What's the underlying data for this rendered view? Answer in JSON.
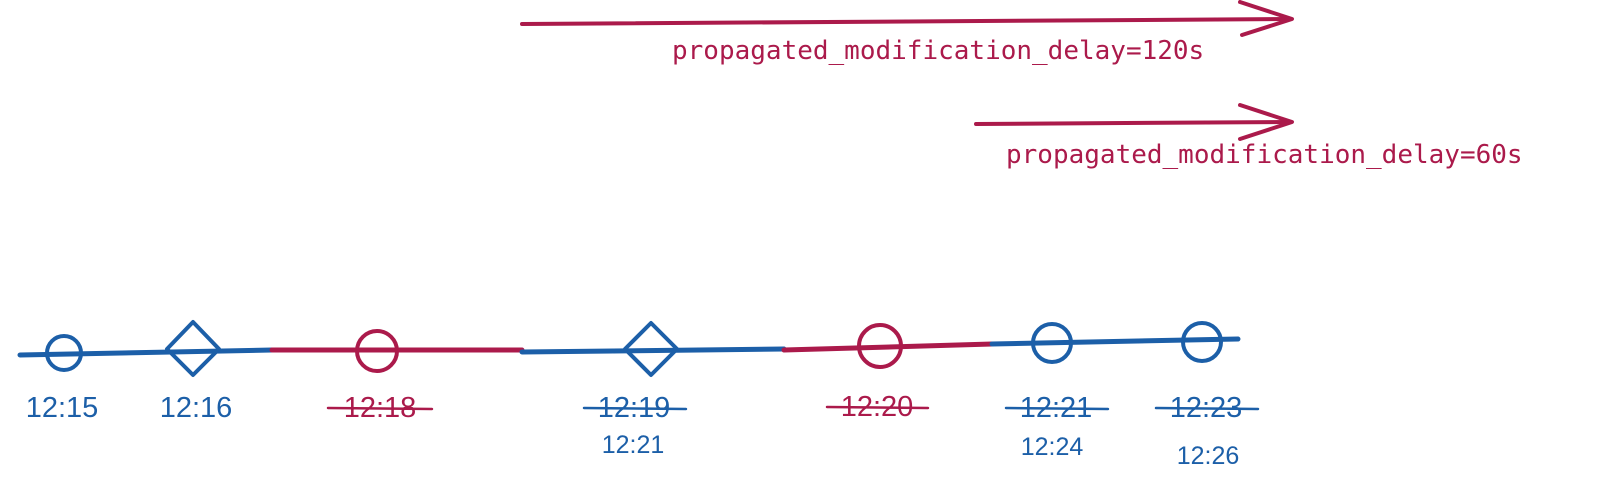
{
  "colors": {
    "blue": "#1c5fa8",
    "crimson": "#ab1a4b",
    "background": "#ffffff"
  },
  "arrows": [
    {
      "label": "propagated_modification_delay=120s",
      "color": "#ab1a4b"
    },
    {
      "label": "propagated_modification_delay=60s",
      "color": "#ab1a4b"
    }
  ],
  "timeline": {
    "segments": [
      {
        "color": "#1c5fa8"
      },
      {
        "color": "#ab1a4b"
      },
      {
        "color": "#1c5fa8"
      },
      {
        "color": "#ab1a4b"
      },
      {
        "color": "#1c5fa8"
      }
    ],
    "events": [
      {
        "shape": "circle",
        "color": "#1c5fa8",
        "time": "12:15",
        "struck": false,
        "new_time": ""
      },
      {
        "shape": "diamond",
        "color": "#1c5fa8",
        "time": "12:16",
        "struck": false,
        "new_time": ""
      },
      {
        "shape": "circle",
        "color": "#ab1a4b",
        "time": "12:18",
        "struck": true,
        "new_time": ""
      },
      {
        "shape": "diamond",
        "color": "#1c5fa8",
        "time": "12:19",
        "struck": true,
        "new_time": "12:21"
      },
      {
        "shape": "circle",
        "color": "#ab1a4b",
        "time": "12:20",
        "struck": true,
        "new_time": ""
      },
      {
        "shape": "circle",
        "color": "#1c5fa8",
        "time": "12:21",
        "struck": true,
        "new_time": "12:24"
      },
      {
        "shape": "circle",
        "color": "#1c5fa8",
        "time": "12:23",
        "struck": true,
        "new_time": "12:26"
      }
    ]
  }
}
